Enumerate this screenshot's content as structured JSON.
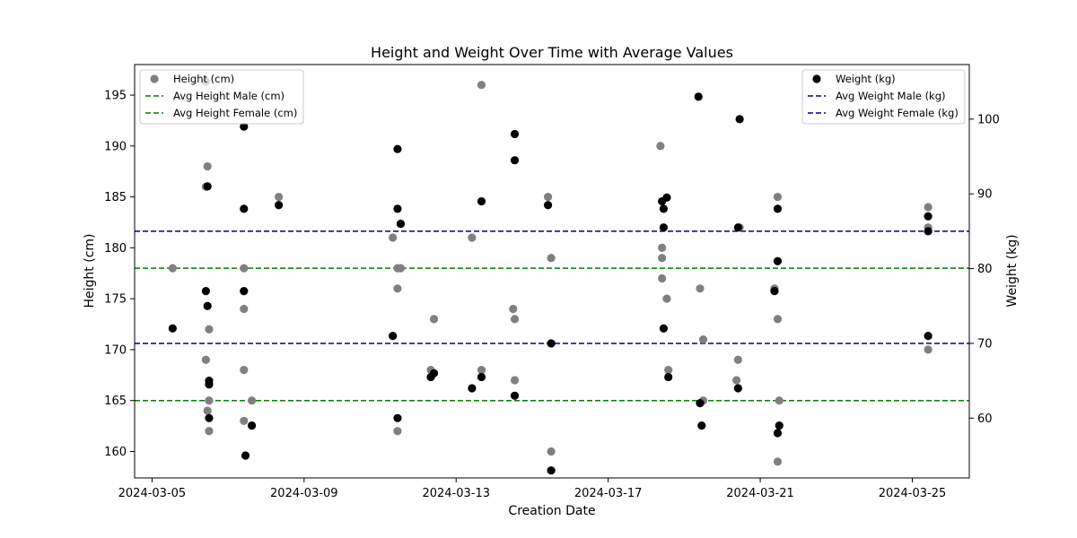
{
  "chart_data": {
    "type": "scatter",
    "title": "Height and Weight Over Time with Average Values",
    "xlabel": "Creation Date",
    "ylabel_left": "Height (cm)",
    "ylabel_right": "Weight (kg)",
    "x_axis_type": "date",
    "xlim": [
      "2024-03-04T13:00",
      "2024-03-26T12:00"
    ],
    "x_ticks": [
      "2024-03-05",
      "2024-03-09",
      "2024-03-13",
      "2024-03-17",
      "2024-03-21",
      "2024-03-25"
    ],
    "ylim_left": [
      157.4,
      198.0
    ],
    "ylim_right": [
      52.0,
      107.3
    ],
    "y_ticks_left": [
      160,
      165,
      170,
      175,
      180,
      185,
      190,
      195
    ],
    "y_ticks_right": [
      60,
      70,
      80,
      90,
      100
    ],
    "grid": false,
    "series": [
      {
        "name": "Height (cm)",
        "axis": "left",
        "color": "#808080",
        "marker": "circle",
        "points": [
          {
            "x": "2024-03-05T13:00",
            "y": 178
          },
          {
            "x": "2024-03-06T10:00",
            "y": 186
          },
          {
            "x": "2024-03-06T11:00",
            "y": 188
          },
          {
            "x": "2024-03-06T10:00",
            "y": 169
          },
          {
            "x": "2024-03-06T11:00",
            "y": 164
          },
          {
            "x": "2024-03-06T12:00",
            "y": 172
          },
          {
            "x": "2024-03-06T12:00",
            "y": 165
          },
          {
            "x": "2024-03-06T12:00",
            "y": 162
          },
          {
            "x": "2024-03-07T10:00",
            "y": 178
          },
          {
            "x": "2024-03-07T10:00",
            "y": 174
          },
          {
            "x": "2024-03-07T10:00",
            "y": 168
          },
          {
            "x": "2024-03-07T10:00",
            "y": 163
          },
          {
            "x": "2024-03-07T15:00",
            "y": 165
          },
          {
            "x": "2024-03-08T08:00",
            "y": 185
          },
          {
            "x": "2024-03-11T08:00",
            "y": 181
          },
          {
            "x": "2024-03-11T11:00",
            "y": 178
          },
          {
            "x": "2024-03-11T13:00",
            "y": 178
          },
          {
            "x": "2024-03-11T11:00",
            "y": 176
          },
          {
            "x": "2024-03-11T11:00",
            "y": 162
          },
          {
            "x": "2024-03-12T08:00",
            "y": 168
          },
          {
            "x": "2024-03-12T10:00",
            "y": 173
          },
          {
            "x": "2024-03-13T10:00",
            "y": 181
          },
          {
            "x": "2024-03-13T16:00",
            "y": 196
          },
          {
            "x": "2024-03-13T16:00",
            "y": 168
          },
          {
            "x": "2024-03-14T12:00",
            "y": 174
          },
          {
            "x": "2024-03-14T13:00",
            "y": 173
          },
          {
            "x": "2024-03-14T13:00",
            "y": 167
          },
          {
            "x": "2024-03-15T10:00",
            "y": 185
          },
          {
            "x": "2024-03-15T12:00",
            "y": 179
          },
          {
            "x": "2024-03-15T12:00",
            "y": 160
          },
          {
            "x": "2024-03-18T09:00",
            "y": 190
          },
          {
            "x": "2024-03-18T10:00",
            "y": 180
          },
          {
            "x": "2024-03-18T10:00",
            "y": 179
          },
          {
            "x": "2024-03-18T10:00",
            "y": 177
          },
          {
            "x": "2024-03-18T13:00",
            "y": 175
          },
          {
            "x": "2024-03-18T14:00",
            "y": 168
          },
          {
            "x": "2024-03-19T10:00",
            "y": 176
          },
          {
            "x": "2024-03-19T12:00",
            "y": 171
          },
          {
            "x": "2024-03-19T12:00",
            "y": 165
          },
          {
            "x": "2024-03-20T10:00",
            "y": 169
          },
          {
            "x": "2024-03-20T09:00",
            "y": 167
          },
          {
            "x": "2024-03-20T11:00",
            "y": 182
          },
          {
            "x": "2024-03-21T09:00",
            "y": 176
          },
          {
            "x": "2024-03-21T11:00",
            "y": 185
          },
          {
            "x": "2024-03-21T11:00",
            "y": 173
          },
          {
            "x": "2024-03-21T12:00",
            "y": 165
          },
          {
            "x": "2024-03-21T11:00",
            "y": 159
          },
          {
            "x": "2024-03-25T10:00",
            "y": 184
          },
          {
            "x": "2024-03-25T10:00",
            "y": 182
          },
          {
            "x": "2024-03-25T10:00",
            "y": 170
          }
        ]
      },
      {
        "name": "Weight (kg)",
        "axis": "right",
        "color": "#000000",
        "marker": "circle",
        "points": [
          {
            "x": "2024-03-05T13:00",
            "y": 72
          },
          {
            "x": "2024-03-06T10:00",
            "y": 105
          },
          {
            "x": "2024-03-06T11:00",
            "y": 91
          },
          {
            "x": "2024-03-06T10:00",
            "y": 77
          },
          {
            "x": "2024-03-06T11:00",
            "y": 75
          },
          {
            "x": "2024-03-06T12:00",
            "y": 65
          },
          {
            "x": "2024-03-06T12:00",
            "y": 64.5
          },
          {
            "x": "2024-03-06T12:00",
            "y": 60
          },
          {
            "x": "2024-03-07T10:00",
            "y": 99
          },
          {
            "x": "2024-03-07T10:00",
            "y": 88
          },
          {
            "x": "2024-03-07T10:00",
            "y": 77
          },
          {
            "x": "2024-03-07T15:00",
            "y": 59
          },
          {
            "x": "2024-03-07T11:00",
            "y": 55
          },
          {
            "x": "2024-03-08T08:00",
            "y": 88.5
          },
          {
            "x": "2024-03-11T08:00",
            "y": 71
          },
          {
            "x": "2024-03-11T11:00",
            "y": 96
          },
          {
            "x": "2024-03-11T11:00",
            "y": 88
          },
          {
            "x": "2024-03-11T13:00",
            "y": 86
          },
          {
            "x": "2024-03-11T11:00",
            "y": 60
          },
          {
            "x": "2024-03-12T10:00",
            "y": 66
          },
          {
            "x": "2024-03-12T08:00",
            "y": 65.5
          },
          {
            "x": "2024-03-13T10:00",
            "y": 64
          },
          {
            "x": "2024-03-13T16:00",
            "y": 89
          },
          {
            "x": "2024-03-13T16:00",
            "y": 65.5
          },
          {
            "x": "2024-03-14T13:00",
            "y": 98
          },
          {
            "x": "2024-03-14T13:00",
            "y": 94.5
          },
          {
            "x": "2024-03-14T13:00",
            "y": 63
          },
          {
            "x": "2024-03-15T10:00",
            "y": 88.5
          },
          {
            "x": "2024-03-15T12:00",
            "y": 70
          },
          {
            "x": "2024-03-15T12:00",
            "y": 53
          },
          {
            "x": "2024-03-18T10:00",
            "y": 89
          },
          {
            "x": "2024-03-18T13:00",
            "y": 89.5
          },
          {
            "x": "2024-03-18T11:00",
            "y": 88
          },
          {
            "x": "2024-03-18T11:00",
            "y": 85.5
          },
          {
            "x": "2024-03-18T11:00",
            "y": 72
          },
          {
            "x": "2024-03-18T14:00",
            "y": 65.5
          },
          {
            "x": "2024-03-19T09:00",
            "y": 103
          },
          {
            "x": "2024-03-19T10:00",
            "y": 62
          },
          {
            "x": "2024-03-19T11:00",
            "y": 59
          },
          {
            "x": "2024-03-20T11:00",
            "y": 100
          },
          {
            "x": "2024-03-20T10:00",
            "y": 85.5
          },
          {
            "x": "2024-03-20T10:00",
            "y": 64
          },
          {
            "x": "2024-03-21T09:00",
            "y": 77
          },
          {
            "x": "2024-03-21T11:00",
            "y": 88
          },
          {
            "x": "2024-03-21T11:00",
            "y": 81
          },
          {
            "x": "2024-03-21T12:00",
            "y": 59
          },
          {
            "x": "2024-03-21T11:00",
            "y": 58
          },
          {
            "x": "2024-03-25T10:00",
            "y": 87
          },
          {
            "x": "2024-03-25T10:00",
            "y": 85
          },
          {
            "x": "2024-03-25T10:00",
            "y": 71
          }
        ]
      }
    ],
    "reference_lines": [
      {
        "name": "Avg Height Male (cm)",
        "axis": "left",
        "y": 178.0,
        "color": "#008000",
        "style": "dashed"
      },
      {
        "name": "Avg Height Female (cm)",
        "axis": "left",
        "y": 165.0,
        "color": "#008000",
        "style": "dashed"
      },
      {
        "name": "Avg Weight Male (kg)",
        "axis": "right",
        "y": 85.0,
        "color": "#00008b",
        "style": "dashed"
      },
      {
        "name": "Avg Weight Female (kg)",
        "axis": "right",
        "y": 70.0,
        "color": "#00008b",
        "style": "dashed"
      }
    ],
    "legends": [
      {
        "placement": "top-left",
        "entries": [
          "Height (cm)",
          "Avg Height Male (cm)",
          "Avg Height Female (cm)"
        ]
      },
      {
        "placement": "top-right",
        "entries": [
          "Weight (kg)",
          "Avg Weight Male (kg)",
          "Avg Weight Female (kg)"
        ]
      }
    ]
  }
}
